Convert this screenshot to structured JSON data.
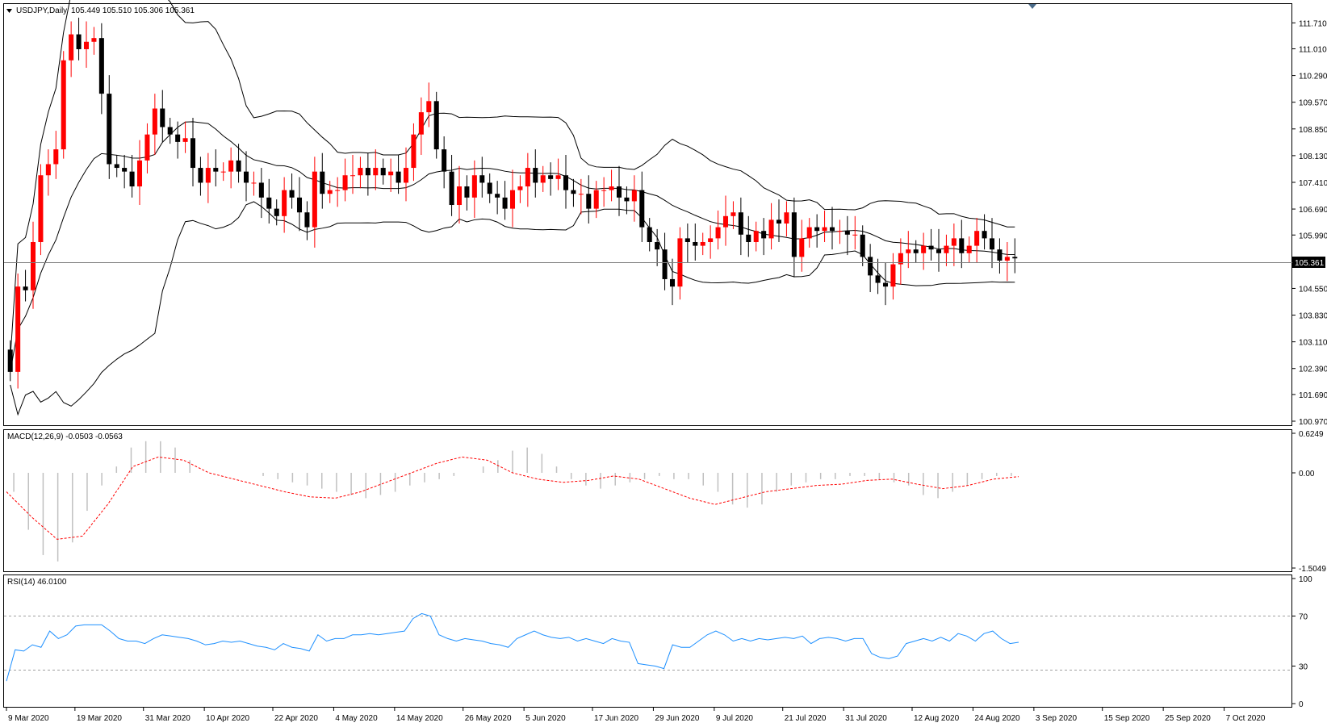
{
  "header": {
    "dropdown_icon": "triangle-down-icon",
    "symbol": "USDJPY,Daily",
    "ohlc": "105.449 105.510 105.306 105.361",
    "macd_label": "MACD(12,26,9) -0.0503 -0.0563",
    "rsi_label": "RSI(14) 46.0100"
  },
  "colors": {
    "bull": "#ff0000",
    "bear": "#000000",
    "bands": "#000000",
    "macd_hist": "#c0c0c0",
    "macd_signal": "#ff0000",
    "rsi": "#1e90ff",
    "border": "#000000"
  },
  "chart_data": [
    {
      "type": "candlestick",
      "title": "USDJPY,Daily",
      "current_price": 105.361,
      "price_ticks": [
        "111.710",
        "111.010",
        "110.290",
        "109.570",
        "108.850",
        "108.130",
        "107.410",
        "106.690",
        "105.990",
        "105.361",
        "104.550",
        "103.830",
        "103.110",
        "102.390",
        "101.690",
        "100.970"
      ],
      "ylim": [
        100.97,
        112.0
      ],
      "date_labels": [
        "9 Mar 2020",
        "19 Mar 2020",
        "31 Mar 2020",
        "10 Apr 2020",
        "22 Apr 2020",
        "4 May 2020",
        "14 May 2020",
        "26 May 2020",
        "5 Jun 2020",
        "17 Jun 2020",
        "29 Jun 2020",
        "9 Jul 2020",
        "21 Jul 2020",
        "31 Jul 2020",
        "12 Aug 2020",
        "24 Aug 2020",
        "3 Sep 2020",
        "15 Sep 2020",
        "25 Sep 2020",
        "7 Oct 2020"
      ],
      "label_positions": [
        0,
        9,
        18,
        26,
        35,
        43,
        51,
        60,
        68,
        77,
        85,
        93,
        102,
        110,
        119,
        127,
        135,
        144,
        152,
        160
      ],
      "closes": [
        102.3,
        104.6,
        104.5,
        105.8,
        107.6,
        107.9,
        108.3,
        110.7,
        111.4,
        111.0,
        111.2,
        111.3,
        109.8,
        107.9,
        107.8,
        107.7,
        107.3,
        108.0,
        108.7,
        109.4,
        108.9,
        108.7,
        108.5,
        108.6,
        107.8,
        107.4,
        107.8,
        107.7,
        107.7,
        108.0,
        107.7,
        107.4,
        107.4,
        107.0,
        106.7,
        106.5,
        107.2,
        107.0,
        106.6,
        106.2,
        107.7,
        107.1,
        107.2,
        107.2,
        107.6,
        107.6,
        107.8,
        107.6,
        107.8,
        107.6,
        107.7,
        107.4,
        107.8,
        108.7,
        109.3,
        109.6,
        108.3,
        107.7,
        106.8,
        107.3,
        107.0,
        107.6,
        107.4,
        107.1,
        107.0,
        106.7,
        107.2,
        107.3,
        107.8,
        107.4,
        107.6,
        107.5,
        107.6,
        107.2,
        107.1,
        107.1,
        106.7,
        107.2,
        107.2,
        107.3,
        107.0,
        106.9,
        107.2,
        106.2,
        105.8,
        105.6,
        104.8,
        104.6,
        105.9,
        105.8,
        105.7,
        105.8,
        105.9,
        106.2,
        106.5,
        106.6,
        106.0,
        105.8,
        106.1,
        105.9,
        106.4,
        106.3,
        106.6,
        105.4,
        105.9,
        106.2,
        106.1,
        106.2,
        106.1,
        106.1,
        106.0,
        106.0,
        105.4,
        104.9,
        104.7,
        104.6,
        105.2,
        105.5,
        105.6,
        105.5,
        105.7,
        105.6,
        105.5,
        105.7,
        105.9,
        105.5,
        105.7,
        106.1,
        105.9,
        105.6,
        105.3,
        105.4,
        105.36
      ],
      "bands": {
        "upper_start": 108.8,
        "lower_start": 102.9,
        "upper_end": 106.1,
        "lower_end": 104.6
      }
    },
    {
      "type": "histogram",
      "title": "MACD(12,26,9) -0.0503 -0.0563",
      "ticks": [
        "0.6249",
        "0.00",
        "-1.5049"
      ],
      "ylim": [
        -1.5049,
        0.6249
      ],
      "series": [
        {
          "name": "MACD",
          "values": [
            -0.3,
            -0.9,
            -1.3,
            -1.4,
            -1.1,
            -0.6,
            -0.2,
            0.1,
            0.4,
            0.5,
            0.5,
            0.4,
            0.2,
            0.0,
            0.0,
            0.0,
            0.0,
            -0.05,
            -0.1,
            -0.15,
            -0.2,
            -0.25,
            -0.3,
            -0.35,
            -0.4,
            -0.35,
            -0.3,
            -0.2,
            -0.15,
            -0.1,
            -0.05,
            0.0,
            0.1,
            0.2,
            0.35,
            0.4,
            0.3,
            0.1,
            -0.1,
            -0.2,
            -0.25,
            -0.2,
            -0.15,
            -0.1,
            -0.05,
            -0.1,
            -0.1,
            -0.2,
            -0.3,
            -0.5,
            -0.55,
            -0.5,
            -0.3,
            -0.2,
            -0.15,
            -0.1,
            -0.1,
            -0.05,
            -0.05,
            -0.1,
            -0.15,
            -0.2,
            -0.35,
            -0.4,
            -0.3,
            -0.2,
            -0.1,
            -0.05,
            -0.05
          ]
        },
        {
          "name": "Signal",
          "values": [
            -0.3,
            -0.7,
            -1.05,
            -1.0,
            -0.5,
            0.1,
            0.25,
            0.2,
            0.0,
            -0.1,
            -0.2,
            -0.3,
            -0.38,
            -0.4,
            -0.3,
            -0.15,
            0.0,
            0.15,
            0.25,
            0.2,
            0.0,
            -0.1,
            -0.15,
            -0.12,
            -0.05,
            -0.1,
            -0.25,
            -0.4,
            -0.5,
            -0.4,
            -0.3,
            -0.25,
            -0.2,
            -0.18,
            -0.12,
            -0.1,
            -0.18,
            -0.25,
            -0.2,
            -0.1,
            -0.06
          ]
        }
      ]
    },
    {
      "type": "line",
      "title": "RSI(14) 46.0100",
      "ticks": [
        "100",
        "70",
        "30",
        "0"
      ],
      "ylim": [
        0,
        100
      ],
      "values": [
        18,
        43,
        42,
        47,
        45,
        58,
        52,
        55,
        62,
        63,
        63,
        63,
        58,
        52,
        50,
        50,
        48,
        52,
        55,
        54,
        53,
        52,
        50,
        47,
        48,
        50,
        49,
        50,
        48,
        46,
        45,
        43,
        48,
        45,
        44,
        42,
        55,
        50,
        52,
        52,
        55,
        55,
        56,
        55,
        56,
        57,
        58,
        68,
        72,
        70,
        55,
        52,
        50,
        52,
        51,
        50,
        48,
        47,
        45,
        52,
        55,
        58,
        55,
        53,
        52,
        53,
        50,
        52,
        50,
        48,
        52,
        50,
        49,
        32,
        31,
        30,
        28,
        47,
        45,
        45,
        50,
        55,
        58,
        55,
        50,
        52,
        50,
        52,
        51,
        52,
        53,
        52,
        54,
        48,
        52,
        53,
        52,
        50,
        52,
        52,
        40,
        37,
        36,
        38,
        48,
        50,
        52,
        50,
        53,
        50,
        56,
        54,
        50,
        56,
        58,
        52,
        48,
        49
      ]
    }
  ]
}
